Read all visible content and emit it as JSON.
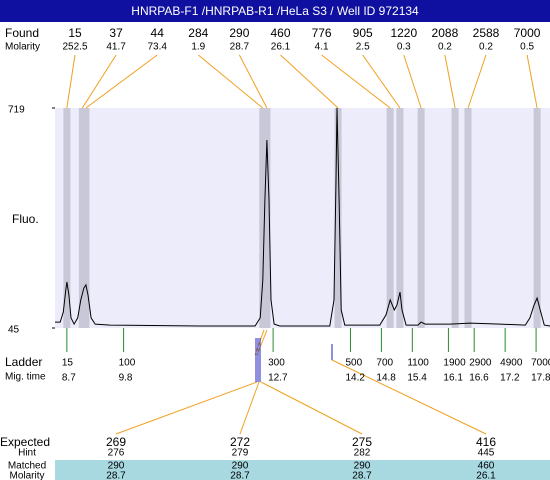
{
  "chart_data": {
    "type": "electropherogram",
    "title": "HNRPAB-F1 /HNRPAB-R1 /HeLa S3 / Well ID 972134",
    "y_label": "Fluo.",
    "xlim": [
      8.47,
      18.07
    ],
    "ylim": [
      45,
      719
    ],
    "yticks": [
      45,
      719
    ],
    "trace": {
      "color": "#000000",
      "x": [
        8.47,
        8.57,
        8.63,
        8.68,
        8.7,
        8.74,
        8.78,
        8.84,
        8.91,
        8.97,
        9.03,
        9.07,
        9.11,
        9.17,
        9.25,
        9.54,
        11.28,
        12.35,
        12.45,
        12.5,
        12.54,
        12.58,
        12.62,
        12.66,
        12.72,
        12.83,
        13.8,
        13.88,
        13.92,
        13.94,
        13.98,
        14.02,
        14.09,
        14.77,
        14.89,
        14.97,
        15.05,
        15.1,
        15.16,
        15.2,
        15.28,
        15.51,
        15.57,
        15.65,
        16.13,
        16.52,
        17.1,
        17.59,
        17.68,
        17.76,
        17.82,
        17.88,
        17.96,
        18.07
      ],
      "values": [
        63,
        63,
        94,
        161,
        186,
        146,
        76,
        57,
        76,
        131,
        168,
        177,
        146,
        76,
        57,
        54,
        51,
        51,
        76,
        192,
        437,
        621,
        437,
        131,
        57,
        51,
        51,
        131,
        498,
        719,
        437,
        100,
        54,
        54,
        85,
        131,
        100,
        115,
        155,
        100,
        54,
        54,
        63,
        57,
        57,
        60,
        57,
        54,
        76,
        115,
        137,
        100,
        54,
        51
      ]
    },
    "found": {
      "label": "Found",
      "molarity_label": "Molarity",
      "band_color": "#c8c8d8",
      "line_color": "#f0a020",
      "sizes": [
        15,
        37,
        44,
        284,
        290,
        460,
        776,
        905,
        1220,
        2088,
        2588,
        7000
      ],
      "molarity": [
        252.5,
        41.7,
        73.4,
        1.9,
        28.7,
        26.1,
        4.1,
        2.5,
        0.3,
        0.2,
        0.2,
        0.5
      ],
      "peak_times": [
        8.7,
        9.0,
        9.07,
        12.5,
        12.58,
        13.96,
        14.97,
        15.16,
        15.57,
        16.23,
        16.48,
        17.82
      ]
    },
    "ladder": {
      "label": "Ladder",
      "time_label": "Mig. time",
      "color": "#2a8a2a",
      "sizes": [
        15,
        100,
        300,
        500,
        700,
        1100,
        1900,
        2900,
        4900,
        7000
      ],
      "times": [
        8.7,
        9.8,
        12.7,
        14.2,
        14.8,
        15.4,
        16.1,
        16.6,
        17.2,
        17.8
      ]
    },
    "expected": {
      "row_labels": [
        "Expected",
        "Hint",
        "Matched",
        "Molarity"
      ],
      "expected": [
        269,
        272,
        275,
        416
      ],
      "hint": [
        276,
        279,
        282,
        445
      ],
      "matched": [
        290,
        290,
        290,
        460
      ],
      "molarity": [
        28.7,
        28.7,
        28.7,
        26.1
      ]
    }
  }
}
